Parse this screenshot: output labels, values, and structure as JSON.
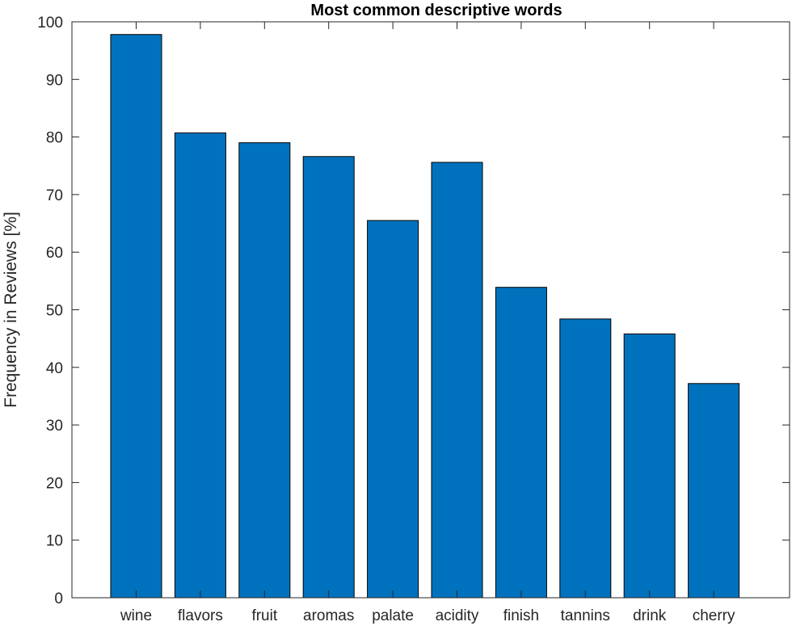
{
  "chart_data": {
    "type": "bar",
    "title": "Most common descriptive words",
    "xlabel": "",
    "ylabel": "Frequency in Reviews [%]",
    "categories": [
      "wine",
      "flavors",
      "fruit",
      "aromas",
      "palate",
      "acidity",
      "finish",
      "tannins",
      "drink",
      "cherry"
    ],
    "values": [
      97.8,
      80.7,
      79.0,
      76.6,
      65.5,
      75.6,
      53.9,
      48.4,
      45.8,
      37.2
    ],
    "ylim": [
      0,
      100
    ],
    "yticks": [
      0,
      10,
      20,
      30,
      40,
      50,
      60,
      70,
      80,
      90,
      100
    ],
    "grid": false,
    "bar_color": "#0072BD"
  }
}
